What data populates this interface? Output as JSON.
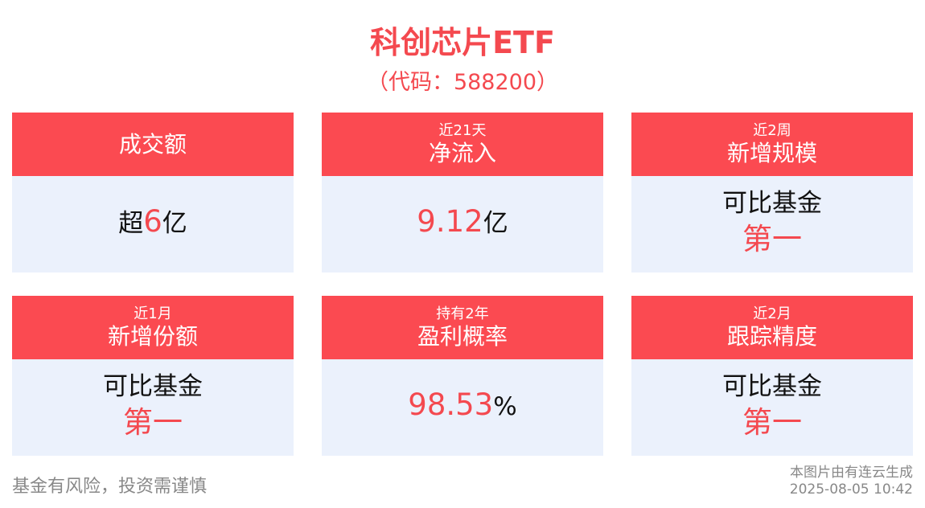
{
  "header": {
    "title": "科创芯片ETF",
    "subtitle": "（代码：588200）"
  },
  "theme": {
    "accent": "#f4494f",
    "card_header": "#fb4a51",
    "card_body": "#ebf1fc",
    "text": "#111111"
  },
  "cards": [
    {
      "title": "成交额",
      "value": [
        [
          {
            "text": "超",
            "accent": false
          },
          {
            "text": "6",
            "accent": true
          },
          {
            "text": "亿",
            "accent": false
          }
        ]
      ]
    },
    {
      "label": "近21天",
      "title": "净流入",
      "value": [
        [
          {
            "text": "9.12",
            "accent": true
          },
          {
            "text": "亿",
            "accent": false
          }
        ]
      ]
    },
    {
      "label": "近2周",
      "title": "新增规模",
      "value": [
        [
          {
            "text": "可比基金",
            "accent": false
          }
        ],
        [
          {
            "text": "第一",
            "accent": true
          }
        ]
      ]
    },
    {
      "label": "近1月",
      "title": "新增份额",
      "value": [
        [
          {
            "text": "可比基金",
            "accent": false
          }
        ],
        [
          {
            "text": "第一",
            "accent": true
          }
        ]
      ]
    },
    {
      "label": "持有2年",
      "title": "盈利概率",
      "value": [
        [
          {
            "text": "98.53",
            "accent": true
          },
          {
            "text": "%",
            "accent": false
          }
        ]
      ]
    },
    {
      "label": "近2月",
      "title": "跟踪精度",
      "value": [
        [
          {
            "text": "可比基金",
            "accent": false
          }
        ],
        [
          {
            "text": "第一",
            "accent": true
          }
        ]
      ]
    }
  ],
  "footer": {
    "disclaimer": "基金有风险，投资需谨慎",
    "source": "本图片由有连云生成",
    "timestamp": "2025-08-05 10:42"
  }
}
